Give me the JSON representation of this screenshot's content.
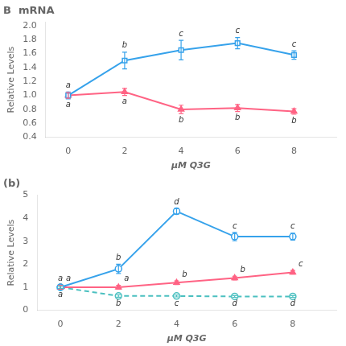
{
  "chart_data": [
    {
      "type": "line",
      "title": "B  mRNA",
      "xlabel": "μM Q3G",
      "ylabel": "Relative Levels",
      "x": [
        0,
        2,
        4,
        6,
        8
      ],
      "xlim": [
        -0.8,
        9.5
      ],
      "xticks": [
        0,
        2,
        4,
        6,
        8
      ],
      "ylim": [
        0.4,
        2.05
      ],
      "yticks": [
        0.4,
        0.6,
        0.8,
        {
          "value": 1.0,
          "label": "1.0"
        },
        1.2,
        1.4,
        1.6,
        1.8,
        {
          "value": 2.0,
          "label": "2.0"
        }
      ],
      "grid": false,
      "series": [
        {
          "values": [
            1.0,
            1.5,
            1.65,
            1.75,
            1.58
          ],
          "errors": [
            0.05,
            0.12,
            0.14,
            0.08,
            0.06
          ],
          "annotations": [
            "a",
            "b",
            "c",
            "c",
            "c"
          ],
          "marker": "square_open",
          "line_style": "solid"
        },
        {
          "values": [
            1.0,
            1.05,
            0.8,
            0.82,
            0.77
          ],
          "errors": [
            0.04,
            0.05,
            0.06,
            0.05,
            0.04
          ],
          "annotations": [
            "a",
            "a",
            "b",
            "b",
            "b"
          ],
          "marker": "triangle",
          "line_style": "solid"
        }
      ]
    },
    {
      "type": "line",
      "title": "(b)",
      "xlabel": "μM Q3G",
      "ylabel": "Relative Levels",
      "x": [
        0,
        2,
        4,
        6,
        8
      ],
      "xlim": [
        -0.8,
        9.5
      ],
      "xticks": [
        0,
        2,
        4,
        6,
        8
      ],
      "ylim": [
        0,
        5
      ],
      "yticks": [
        0,
        1,
        2,
        3,
        4,
        5
      ],
      "grid": false,
      "series": [
        {
          "values": [
            1.0,
            1.8,
            4.3,
            3.2,
            3.2
          ],
          "errors": [
            0.1,
            0.2,
            0.12,
            0.18,
            0.15
          ],
          "annotations": [
            "a",
            "b",
            "d",
            "c",
            "c"
          ],
          "marker": "circle_open",
          "line_style": "solid"
        },
        {
          "values": [
            1.0,
            1.0,
            1.2,
            1.4,
            1.65
          ],
          "errors": [
            0.08,
            0.08,
            0.08,
            0.08,
            0.08
          ],
          "annotations": [
            "a",
            "a",
            "b",
            "b",
            "c"
          ],
          "marker": "triangle",
          "line_style": "solid"
        },
        {
          "values": [
            1.0,
            0.62,
            0.62,
            0.6,
            0.6
          ],
          "errors": [
            0.05,
            0.05,
            0.04,
            0.04,
            0.04
          ],
          "annotations": [
            "a",
            "b",
            "c",
            "d",
            "d"
          ],
          "marker": "circle_open",
          "line_style": "dashed"
        }
      ]
    }
  ]
}
